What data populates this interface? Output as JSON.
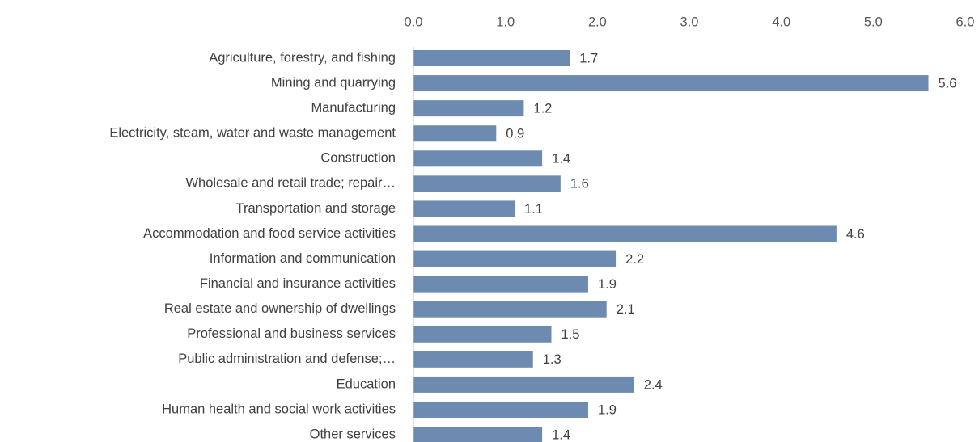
{
  "chart_data": {
    "type": "bar",
    "orientation": "horizontal",
    "categories": [
      "Agriculture, forestry, and fishing",
      "Mining and quarrying",
      "Manufacturing",
      "Electricity, steam, water and waste management",
      "Construction",
      "Wholesale and retail trade; repair…",
      "Transportation and storage",
      "Accommodation and food service activities",
      "Information and communication",
      "Financial and insurance activities",
      "Real estate and ownership of dwellings",
      "Professional and business services",
      "Public administration and defense;…",
      "Education",
      "Human health and social work activities",
      "Other services"
    ],
    "values": [
      1.7,
      5.6,
      1.2,
      0.9,
      1.4,
      1.6,
      1.1,
      4.6,
      2.2,
      1.9,
      2.1,
      1.5,
      1.3,
      2.4,
      1.9,
      1.4
    ],
    "color": "#6d8bb0",
    "xlim": [
      0,
      6
    ],
    "xticks": [
      {
        "value": 0,
        "label": "0.0"
      },
      {
        "value": 1,
        "label": "1.0"
      },
      {
        "value": 2,
        "label": "2.0"
      },
      {
        "value": 3,
        "label": "3.0"
      },
      {
        "value": 4,
        "label": "4.0"
      },
      {
        "value": 5,
        "label": "5.0"
      },
      {
        "value": 6,
        "label": "6.0"
      }
    ],
    "grid": false
  }
}
